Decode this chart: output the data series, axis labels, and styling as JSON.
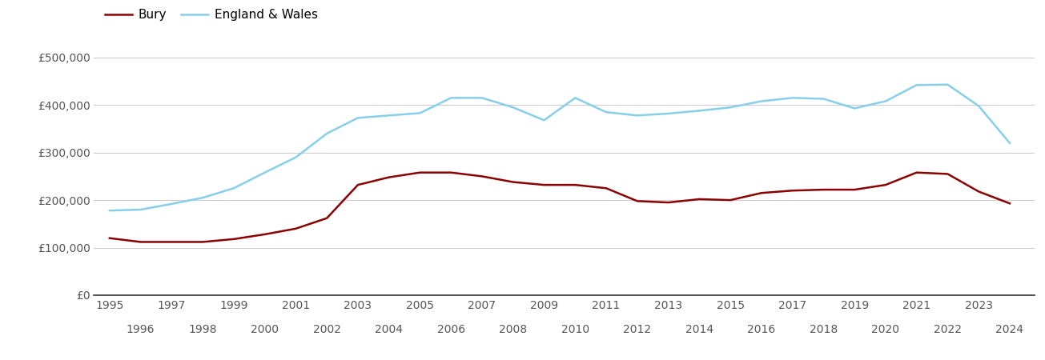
{
  "bury_years": [
    1995,
    1996,
    1997,
    1998,
    1999,
    2000,
    2001,
    2002,
    2003,
    2004,
    2005,
    2006,
    2007,
    2008,
    2009,
    2010,
    2011,
    2012,
    2013,
    2014,
    2015,
    2016,
    2017,
    2018,
    2019,
    2020,
    2021,
    2022,
    2023,
    2024
  ],
  "bury_values": [
    120000,
    112000,
    112000,
    112000,
    118000,
    128000,
    140000,
    162000,
    232000,
    248000,
    258000,
    258000,
    250000,
    238000,
    232000,
    232000,
    225000,
    198000,
    195000,
    202000,
    200000,
    215000,
    220000,
    222000,
    222000,
    232000,
    258000,
    255000,
    218000,
    193000
  ],
  "ew_years": [
    1995,
    1996,
    1997,
    1998,
    1999,
    2000,
    2001,
    2002,
    2003,
    2004,
    2005,
    2006,
    2007,
    2008,
    2009,
    2010,
    2011,
    2012,
    2013,
    2014,
    2015,
    2016,
    2017,
    2018,
    2019,
    2020,
    2021,
    2022,
    2023,
    2024
  ],
  "ew_values": [
    178000,
    180000,
    192000,
    205000,
    225000,
    258000,
    290000,
    340000,
    373000,
    378000,
    383000,
    415000,
    415000,
    395000,
    368000,
    415000,
    385000,
    378000,
    382000,
    388000,
    395000,
    408000,
    415000,
    413000,
    393000,
    408000,
    442000,
    443000,
    398000,
    320000
  ],
  "bury_color": "#8B0000",
  "ew_color": "#87CEEB",
  "bury_label": "Bury",
  "ew_label": "England & Wales",
  "yticks": [
    0,
    100000,
    200000,
    300000,
    400000,
    500000
  ],
  "ytick_labels": [
    "£0",
    "£100,000",
    "£200,000",
    "£300,000",
    "£400,000",
    "£500,000"
  ],
  "ylim": [
    0,
    530000
  ],
  "xlim_min": 1994.5,
  "xlim_max": 2024.8,
  "xticks_row1": [
    1995,
    1997,
    1999,
    2001,
    2003,
    2005,
    2007,
    2009,
    2011,
    2013,
    2015,
    2017,
    2019,
    2021,
    2023
  ],
  "xticks_row2": [
    1996,
    1998,
    2000,
    2002,
    2004,
    2006,
    2008,
    2010,
    2012,
    2014,
    2016,
    2018,
    2020,
    2022,
    2024
  ],
  "background_color": "#ffffff",
  "grid_color": "#cccccc",
  "line_width": 1.8,
  "legend_fontsize": 11,
  "tick_fontsize": 10,
  "tick_color": "#555555"
}
